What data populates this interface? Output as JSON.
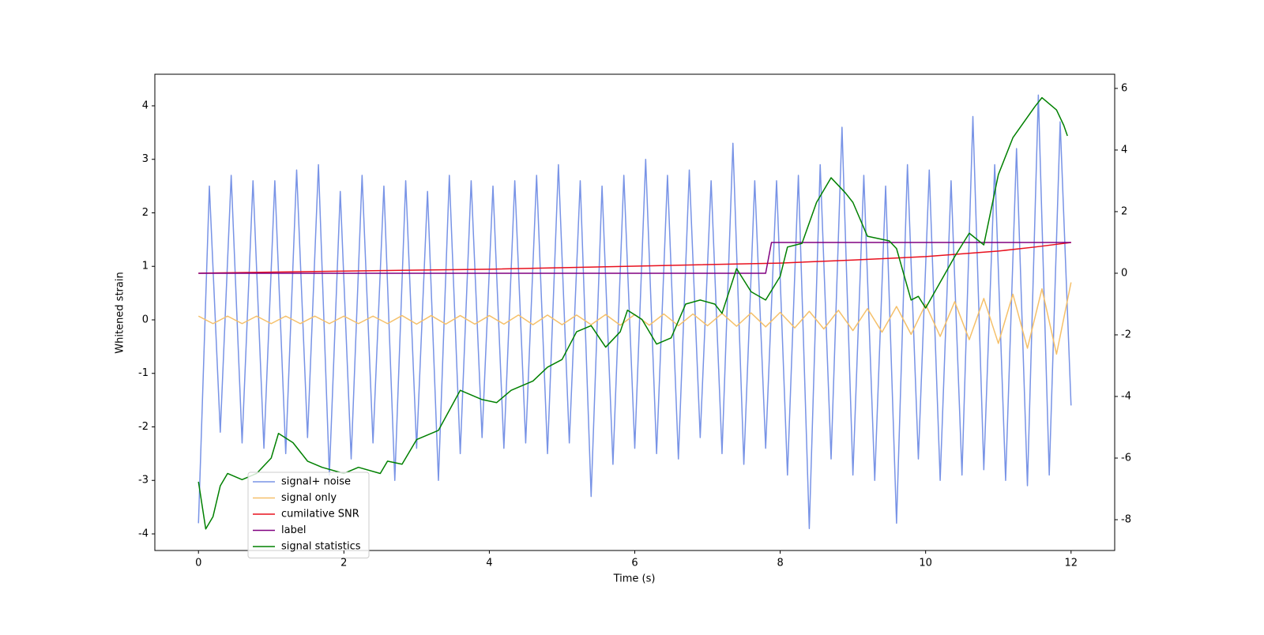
{
  "chart_data": {
    "type": "line",
    "xlabel": "Time (s)",
    "ylabel": "Whitened strain",
    "xlim": [
      -0.6,
      12.6
    ],
    "ylim": [
      -4.31,
      4.59
    ],
    "y2lim": [
      -9.0,
      6.46
    ],
    "xticks": [
      0,
      2,
      4,
      6,
      8,
      10,
      12
    ],
    "yticks": [
      -4,
      -3,
      -2,
      -1,
      0,
      1,
      2,
      3,
      4
    ],
    "y2ticks": [
      -8,
      -6,
      -4,
      -2,
      0,
      2,
      4,
      6
    ],
    "legend": "lower left",
    "series": [
      {
        "name": "signal+ noise",
        "color": "#7893e6",
        "x": [
          0,
          0.15,
          0.3,
          0.45,
          0.6,
          0.75,
          0.9,
          1.05,
          1.2,
          1.35,
          1.5,
          1.65,
          1.8,
          1.95,
          2.1,
          2.25,
          2.4,
          2.55,
          2.7,
          2.85,
          3,
          3.15,
          3.3,
          3.45,
          3.6,
          3.75,
          3.9,
          4.05,
          4.2,
          4.35,
          4.5,
          4.65,
          4.8,
          4.95,
          5.1,
          5.25,
          5.4,
          5.55,
          5.7,
          5.85,
          6,
          6.15,
          6.3,
          6.45,
          6.6,
          6.75,
          6.9,
          7.05,
          7.2,
          7.35,
          7.5,
          7.65,
          7.8,
          7.95,
          8.1,
          8.25,
          8.4,
          8.55,
          8.7,
          8.85,
          9,
          9.15,
          9.3,
          9.45,
          9.6,
          9.75,
          9.9,
          10.05,
          10.2,
          10.35,
          10.5,
          10.65,
          10.8,
          10.95,
          11.1,
          11.25,
          11.4,
          11.55,
          11.7,
          11.85,
          12
        ],
        "values": [
          -3.8,
          2.5,
          -2.1,
          2.7,
          -2.3,
          2.6,
          -2.4,
          2.6,
          -2.5,
          2.8,
          -2.2,
          2.9,
          -2.9,
          2.4,
          -2.6,
          2.7,
          -2.3,
          2.5,
          -3.0,
          2.6,
          -2.4,
          2.4,
          -3.0,
          2.7,
          -2.5,
          2.6,
          -2.2,
          2.5,
          -2.4,
          2.6,
          -2.3,
          2.7,
          -2.5,
          2.9,
          -2.3,
          2.6,
          -3.3,
          2.5,
          -2.7,
          2.7,
          -2.4,
          3.0,
          -2.5,
          2.7,
          -2.6,
          2.8,
          -2.2,
          2.6,
          -2.5,
          3.3,
          -2.7,
          2.6,
          -2.4,
          2.6,
          -2.9,
          2.7,
          -3.9,
          2.9,
          -2.6,
          3.6,
          -2.9,
          2.7,
          -3.0,
          2.5,
          -3.8,
          2.9,
          -2.6,
          2.8,
          -3.0,
          2.6,
          -2.9,
          3.8,
          -2.8,
          2.9,
          -3.0,
          3.2,
          -3.1,
          4.2,
          -2.9,
          3.7,
          -1.6
        ]
      },
      {
        "name": "signal only",
        "color": "#f5c06a",
        "x": [
          0,
          0.2,
          0.4,
          0.6,
          0.8,
          1,
          1.2,
          1.4,
          1.6,
          1.8,
          2,
          2.2,
          2.4,
          2.6,
          2.8,
          3,
          3.2,
          3.4,
          3.6,
          3.8,
          4,
          4.2,
          4.4,
          4.6,
          4.8,
          5,
          5.2,
          5.4,
          5.6,
          5.8,
          6,
          6.2,
          6.4,
          6.6,
          6.8,
          7,
          7.2,
          7.4,
          7.6,
          7.8,
          8,
          8.2,
          8.4,
          8.6,
          8.8,
          9,
          9.2,
          9.4,
          9.6,
          9.8,
          10,
          10.2,
          10.4,
          10.6,
          10.8,
          11,
          11.2,
          11.4,
          11.6,
          11.8,
          12
        ],
        "values": [
          0.07,
          -0.07,
          0.07,
          -0.07,
          0.07,
          -0.07,
          0.07,
          -0.07,
          0.07,
          -0.07,
          0.07,
          -0.07,
          0.07,
          -0.07,
          0.08,
          -0.08,
          0.08,
          -0.08,
          0.08,
          -0.08,
          0.08,
          -0.08,
          0.09,
          -0.09,
          0.09,
          -0.09,
          0.09,
          -0.09,
          0.1,
          -0.1,
          0.1,
          -0.1,
          0.11,
          -0.11,
          0.11,
          -0.11,
          0.12,
          -0.12,
          0.13,
          -0.13,
          0.14,
          -0.15,
          0.16,
          -0.17,
          0.18,
          -0.2,
          0.21,
          -0.23,
          0.25,
          -0.27,
          0.29,
          -0.31,
          0.34,
          -0.37,
          0.4,
          -0.44,
          0.48,
          -0.53,
          0.58,
          -0.64,
          0.7
        ]
      },
      {
        "name": "cumilative SNR",
        "color": "#e8101e",
        "axis": "y2",
        "x": [
          0,
          2,
          4,
          6,
          8,
          9,
          10,
          11,
          11.5,
          12
        ],
        "values": [
          0,
          0.07,
          0.13,
          0.23,
          0.33,
          0.43,
          0.54,
          0.72,
          0.85,
          1.0
        ]
      },
      {
        "name": "label",
        "color": "#800080",
        "axis": "y2",
        "x": [
          0,
          7.8,
          7.88,
          12
        ],
        "values": [
          0,
          0,
          1,
          1
        ]
      },
      {
        "name": "signal statistics",
        "color": "#008000",
        "axis": "y2",
        "x": [
          0,
          0.1,
          0.2,
          0.3,
          0.4,
          0.6,
          0.8,
          1.0,
          1.1,
          1.3,
          1.5,
          1.7,
          2.0,
          2.2,
          2.5,
          2.6,
          2.8,
          3.0,
          3.3,
          3.6,
          3.9,
          4.1,
          4.3,
          4.6,
          4.8,
          5.0,
          5.2,
          5.4,
          5.6,
          5.8,
          5.9,
          6.1,
          6.3,
          6.5,
          6.7,
          6.9,
          7.1,
          7.2,
          7.4,
          7.6,
          7.8,
          8.0,
          8.1,
          8.3,
          8.5,
          8.7,
          8.9,
          9.0,
          9.2,
          9.5,
          9.6,
          9.8,
          9.9,
          10.0,
          10.4,
          10.6,
          10.8,
          11.0,
          11.2,
          11.5,
          11.6,
          11.8,
          11.9,
          11.95
        ],
        "values": [
          -6.77,
          -8.3,
          -7.9,
          -6.9,
          -6.5,
          -6.7,
          -6.5,
          -6.0,
          -5.2,
          -5.5,
          -6.1,
          -6.3,
          -6.5,
          -6.3,
          -6.5,
          -6.1,
          -6.2,
          -5.4,
          -5.1,
          -3.8,
          -4.1,
          -4.2,
          -3.8,
          -3.5,
          -3.05,
          -2.8,
          -1.9,
          -1.7,
          -2.4,
          -1.9,
          -1.2,
          -1.5,
          -2.3,
          -2.1,
          -1.0,
          -0.87,
          -1.0,
          -1.3,
          0.15,
          -0.6,
          -0.87,
          -0.1,
          0.85,
          0.97,
          2.3,
          3.1,
          2.6,
          2.3,
          1.2,
          1.05,
          0.8,
          -0.87,
          -0.75,
          -1.13,
          0.54,
          1.3,
          0.92,
          3.2,
          4.4,
          5.4,
          5.7,
          5.3,
          4.8,
          4.46
        ]
      }
    ]
  }
}
